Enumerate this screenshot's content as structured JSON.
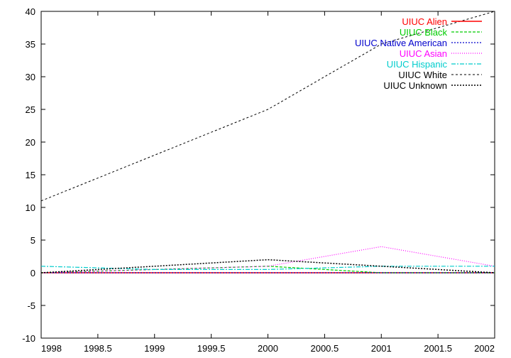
{
  "chart_data": {
    "type": "line",
    "title": "",
    "xlabel": "",
    "ylabel": "",
    "xlim": [
      1998,
      2002
    ],
    "ylim": [
      -10,
      40
    ],
    "x_ticks": [
      1998,
      1998.5,
      1999,
      1999.5,
      2000,
      2000.5,
      2001,
      2001.5,
      2002
    ],
    "x_tick_labels": [
      "1998",
      "1998.5",
      "1999",
      "1999.5",
      "2000",
      "2000.5",
      "2001",
      "2001.5",
      "2002"
    ],
    "y_ticks": [
      -10,
      -5,
      0,
      5,
      10,
      15,
      20,
      25,
      30,
      35,
      40
    ],
    "y_tick_labels": [
      "-10",
      "-5",
      "0",
      "5",
      "10",
      "15",
      "20",
      "25",
      "30",
      "35",
      "40"
    ],
    "grid": false,
    "legend_position": "top-right",
    "x": [
      1998,
      1999,
      2000,
      2001,
      2002
    ],
    "series": [
      {
        "name": "UIUC Alien",
        "values": [
          0,
          0,
          0,
          0,
          0
        ],
        "color": "#ff0000",
        "dash": "solid",
        "width": 1.5
      },
      {
        "name": "UIUC Black",
        "values": [
          0,
          0.5,
          1,
          0,
          0
        ],
        "color": "#00cc00",
        "dash": "4,2",
        "width": 1.2
      },
      {
        "name": "UIUC Native American",
        "values": [
          0,
          0,
          0,
          0,
          0
        ],
        "color": "#0000cc",
        "dash": "2,2",
        "width": 1.2
      },
      {
        "name": "UIUC Asian",
        "values": [
          0,
          0.5,
          1,
          4,
          1
        ],
        "color": "#ff00ff",
        "dash": "1,2",
        "width": 1.2
      },
      {
        "name": "UIUC Hispanic",
        "values": [
          1,
          0.5,
          0.5,
          1,
          1
        ],
        "color": "#00cccc",
        "dash": "6,2,2,2",
        "width": 1.2
      },
      {
        "name": "UIUC White",
        "values": [
          11,
          18,
          25,
          35,
          40
        ],
        "color": "#000000",
        "dash": "3,3",
        "width": 1
      },
      {
        "name": "UIUC Unknown",
        "values": [
          0,
          1,
          2,
          1,
          0
        ],
        "color": "#000000",
        "dash": "2,2",
        "width": 1.5
      }
    ]
  }
}
